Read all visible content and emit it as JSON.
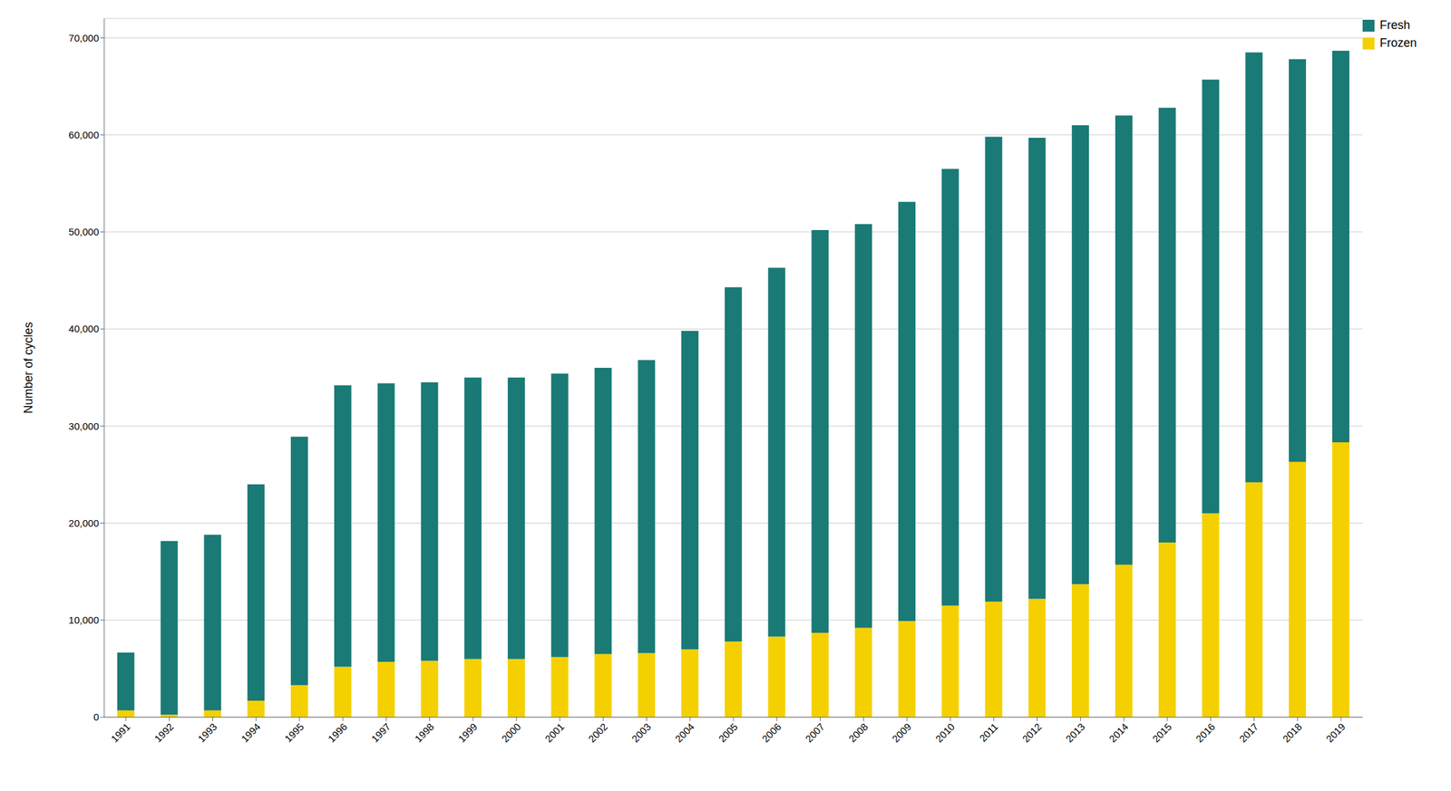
{
  "chart_data": {
    "type": "bar",
    "stacked": true,
    "grid": true,
    "legend": "upper right",
    "ylabel": "Number of cycles",
    "categories": [
      "1991",
      "1992",
      "1993",
      "1994",
      "1995",
      "1996",
      "1997",
      "1998",
      "1999",
      "2000",
      "2001",
      "2002",
      "2003",
      "2004",
      "2005",
      "2006",
      "2007",
      "2008",
      "2009",
      "2010",
      "2011",
      "2012",
      "2013",
      "2014",
      "2015",
      "2016",
      "2017",
      "2018",
      "2019"
    ],
    "series": [
      {
        "name": "Fresh",
        "color": "#1a7a75",
        "values": [
          5955,
          17900,
          18100,
          22300,
          25600,
          29000,
          28700,
          28700,
          29000,
          29000,
          29200,
          29500,
          30200,
          32800,
          36500,
          38000,
          41500,
          41600,
          43200,
          45000,
          47905,
          47500,
          47300,
          46300,
          44800,
          44700,
          44300,
          41500,
          40358
        ]
      },
      {
        "name": "Frozen",
        "color": "#f5d000",
        "values": [
          696,
          250,
          700,
          1700,
          3300,
          5200,
          5700,
          5800,
          6000,
          6000,
          6200,
          6500,
          6600,
          7000,
          7800,
          8300,
          8700,
          9200,
          9900,
          11500,
          11900,
          12200,
          13700,
          15700,
          18000,
          21000,
          24200,
          26300,
          28317
        ]
      }
    ],
    "ylim": [
      0,
      72000
    ],
    "yticks": [
      0,
      {
        "value": 10000,
        "label": "10,000"
      },
      {
        "value": 20000,
        "label": "20,000"
      },
      {
        "value": 30000,
        "label": "30,000"
      },
      {
        "value": 40000,
        "label": "40,000"
      },
      {
        "value": 50000,
        "label": "50,000"
      },
      {
        "value": 60000,
        "label": "60,000"
      },
      {
        "value": 70000,
        "label": "70,000"
      }
    ]
  }
}
